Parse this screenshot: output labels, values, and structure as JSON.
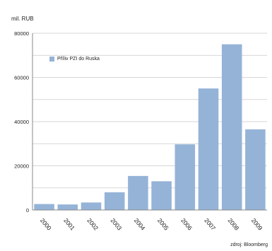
{
  "chart_data": {
    "type": "bar",
    "unit_label": "mil. RUB",
    "categories": [
      "2000",
      "2001",
      "2002",
      "2003",
      "2004",
      "2005",
      "2006",
      "2007",
      "2008",
      "2009"
    ],
    "series": [
      {
        "name": "Příliv PZI do Ruska",
        "color": "#95b3d7",
        "values": [
          2700,
          2500,
          3400,
          8000,
          15400,
          13000,
          29700,
          55000,
          75000,
          36500
        ]
      }
    ],
    "ylim": [
      0,
      80000
    ],
    "yticks": [
      "0",
      "20000",
      "40000",
      "60000",
      "80000"
    ],
    "grid": true,
    "legend_position": "top-left",
    "source": "zdroj: Bloomberg"
  }
}
